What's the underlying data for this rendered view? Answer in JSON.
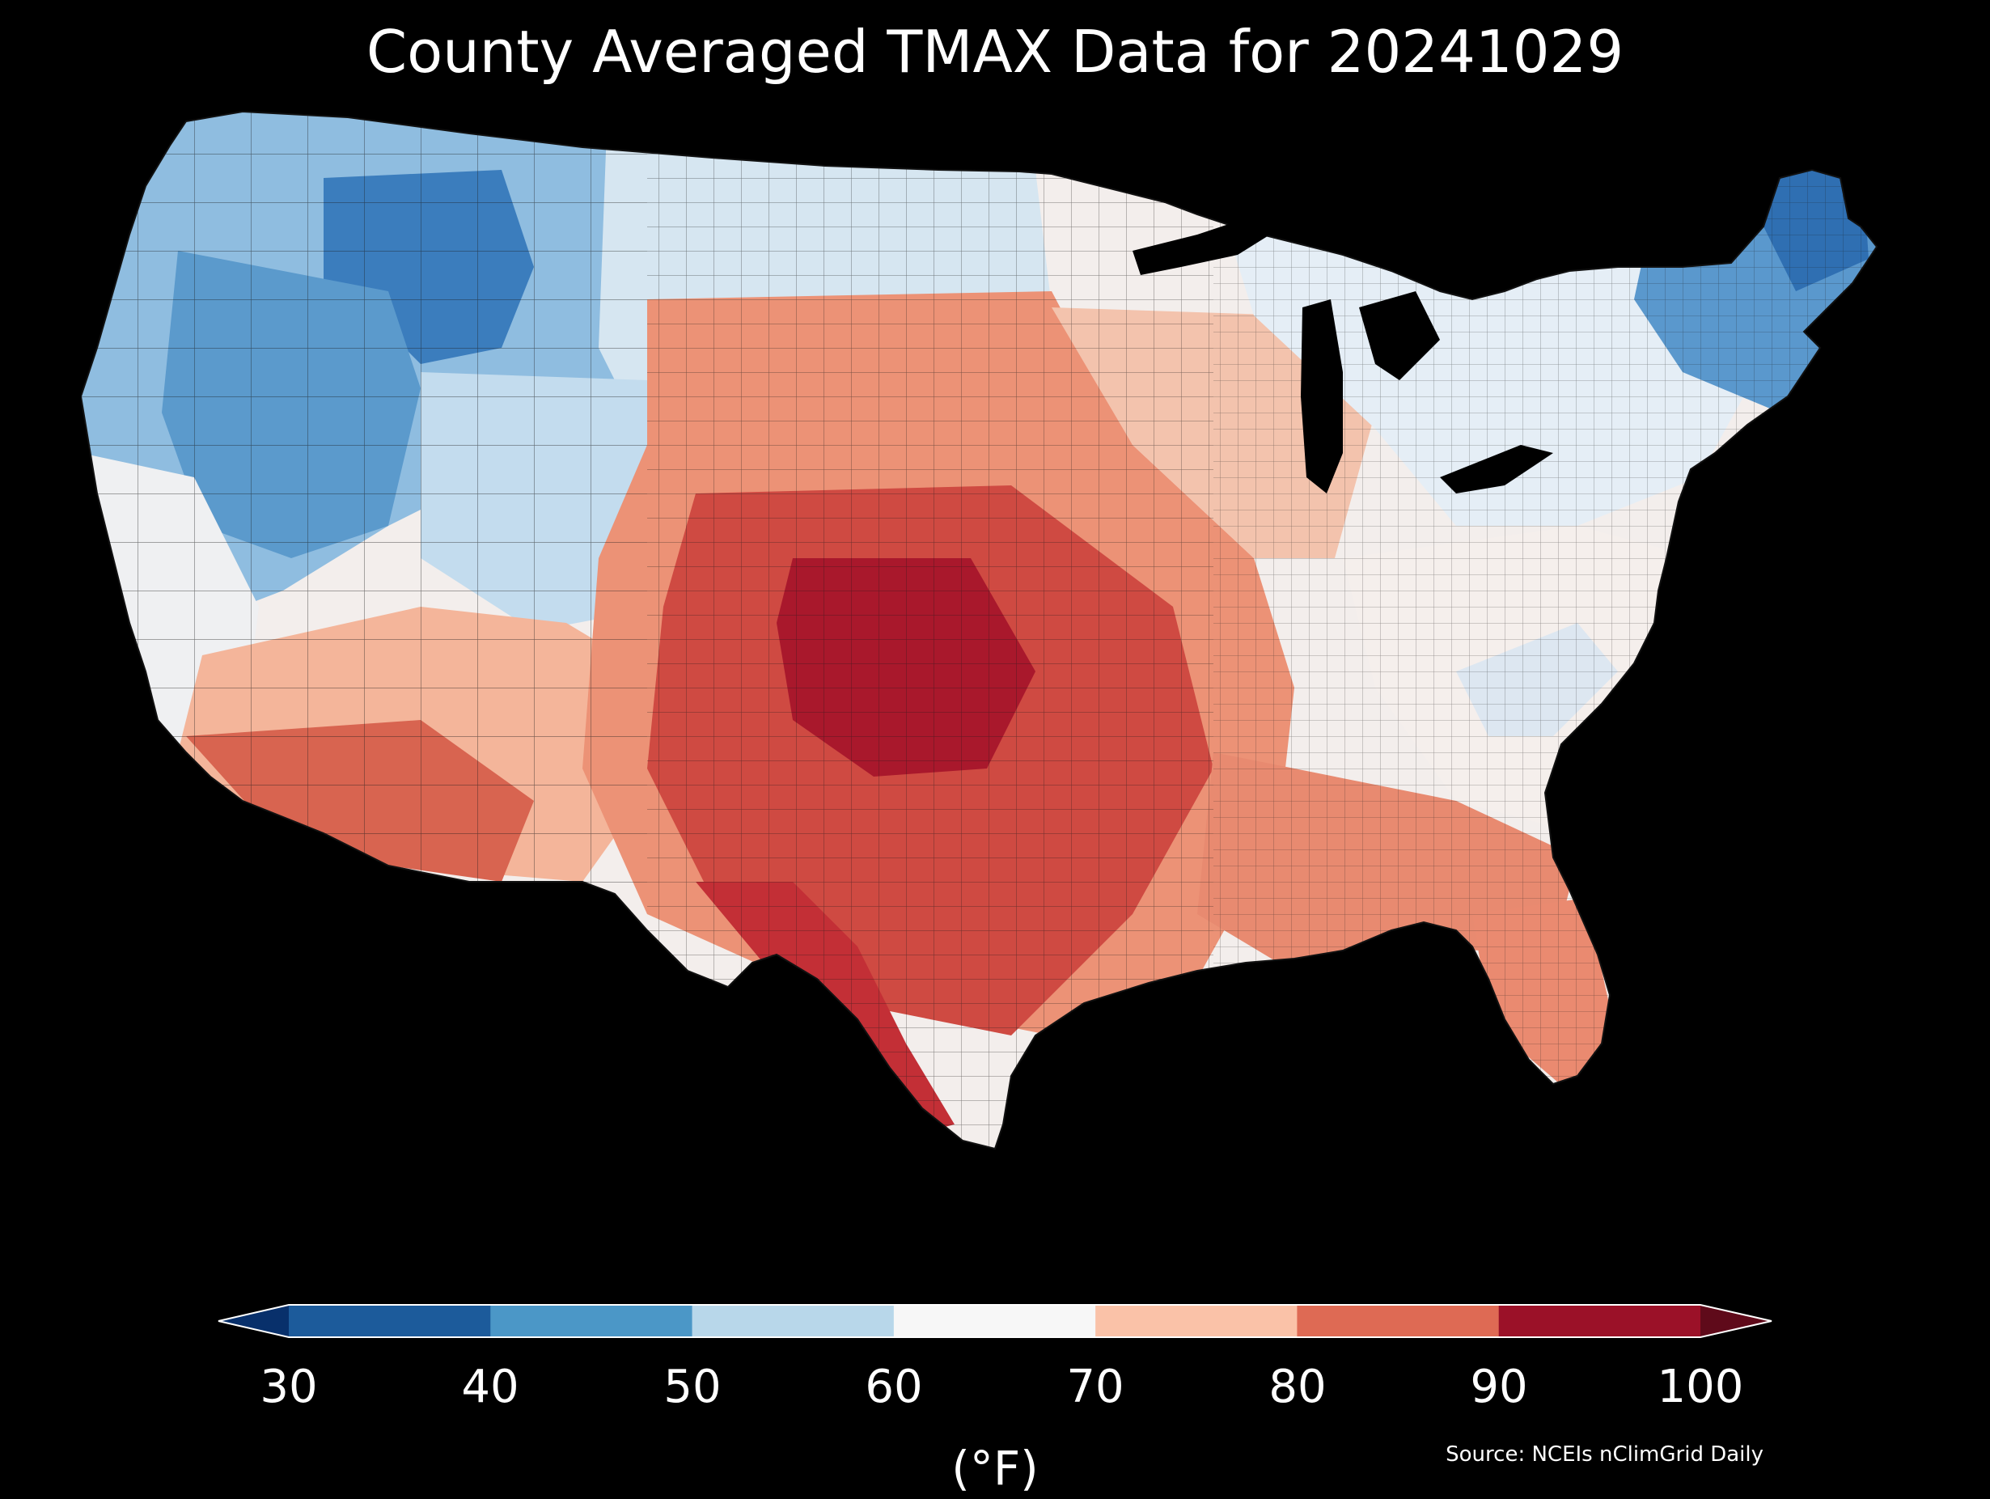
{
  "title": "County Averaged TMAX Data for 20241029",
  "colorbar": {
    "ticks": [
      "30",
      "40",
      "50",
      "60",
      "70",
      "80",
      "90",
      "100"
    ],
    "colors": [
      "#08306b",
      "#1c5b9b",
      "#4b97c7",
      "#b8d7ea",
      "#f7f7f7",
      "#fac2a8",
      "#de6a54",
      "#9b1128",
      "#5f0a1a"
    ],
    "unit": "(°F)"
  },
  "source": "Source: NCEIs nClimGrid Daily",
  "palette": {
    "very_cold": "#2f6fb2",
    "cold": "#4f93c8",
    "cool": "#9cc6e2",
    "mild": "#dfe9f2",
    "neutral": "#f4f2f0",
    "warm": "#f6c1a5",
    "hot": "#e47a60",
    "very_hot": "#c43a3a",
    "extreme": "#9b1128",
    "county_border": "#1a1a1a"
  }
}
